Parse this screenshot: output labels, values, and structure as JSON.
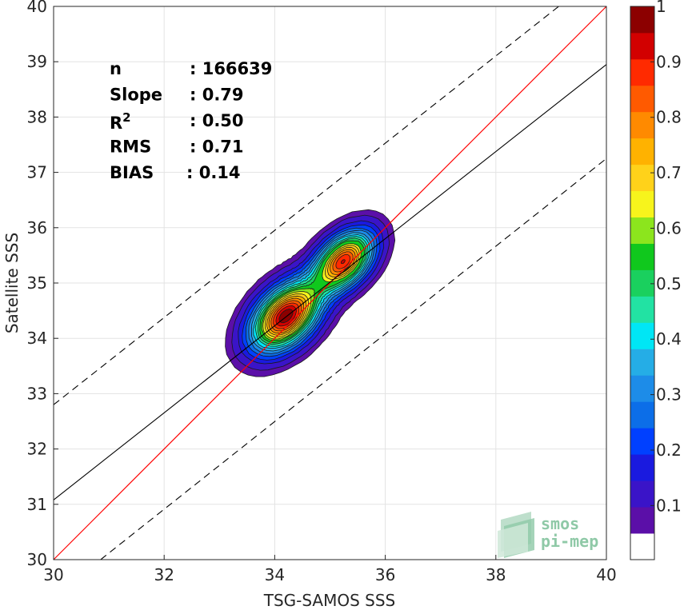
{
  "chart_data": {
    "type": "heatmap",
    "xlabel": "TSG-SAMOS SSS",
    "ylabel": "Satellite SSS",
    "xlim": [
      30,
      40
    ],
    "ylim": [
      30,
      40
    ],
    "xticks": [
      30,
      32,
      34,
      36,
      38,
      40
    ],
    "yticks": [
      30,
      31,
      32,
      33,
      34,
      35,
      36,
      37,
      38,
      39,
      40
    ],
    "grid": true,
    "stats": [
      {
        "label": "n",
        "value": ": 166639"
      },
      {
        "label": "Slope",
        "value": ": 0.79"
      },
      {
        "label": "R",
        "sup": "2",
        "value": ": 0.50"
      },
      {
        "label": "RMS",
        "value": ": 0.71"
      },
      {
        "label": "BIAS",
        "value": ": 0.14"
      }
    ],
    "identity_line": {
      "color": "#ff0000",
      "points": [
        [
          30,
          30
        ],
        [
          40,
          40
        ]
      ]
    },
    "regression_line": {
      "color": "#000000",
      "points": [
        [
          30,
          31.08
        ],
        [
          40,
          38.95
        ]
      ]
    },
    "dashed_lines": [
      {
        "points": [
          [
            30,
            32.8
          ],
          [
            40,
            40.68
          ]
        ]
      },
      {
        "points": [
          [
            30.85,
            30
          ],
          [
            40,
            37.25
          ]
        ]
      }
    ],
    "density_peaks": [
      {
        "x": 34.2,
        "y": 34.4,
        "value": 1.0
      },
      {
        "x": 35.25,
        "y": 35.4,
        "value": 0.9
      }
    ],
    "colorbar": {
      "min": 0,
      "max": 1,
      "ticks": [
        "0.1",
        "0.2",
        "0.3",
        "0.4",
        "0.5",
        "0.6",
        "0.7",
        "0.8",
        "0.9",
        "1"
      ],
      "levels": [
        0,
        0.05,
        0.1,
        0.15,
        0.2,
        0.25,
        0.3,
        0.35,
        0.4,
        0.45,
        0.5,
        0.55,
        0.6,
        0.65,
        0.7,
        0.75,
        0.8,
        0.85,
        0.9,
        0.95,
        1.0
      ],
      "colors": [
        "#ffffff",
        "#5b0fa8",
        "#3a14c8",
        "#1a1adf",
        "#0040ff",
        "#0c6ee8",
        "#1d8ce8",
        "#25ade6",
        "#00e6f5",
        "#22e2a3",
        "#1ad05e",
        "#10c81d",
        "#8ce51d",
        "#f7f41c",
        "#ffd21a",
        "#ffb200",
        "#ff8a00",
        "#ff5a00",
        "#ff2a00",
        "#d20000",
        "#8c0000"
      ]
    }
  },
  "logo": {
    "line1": "smos",
    "line2": "pi-mep"
  }
}
